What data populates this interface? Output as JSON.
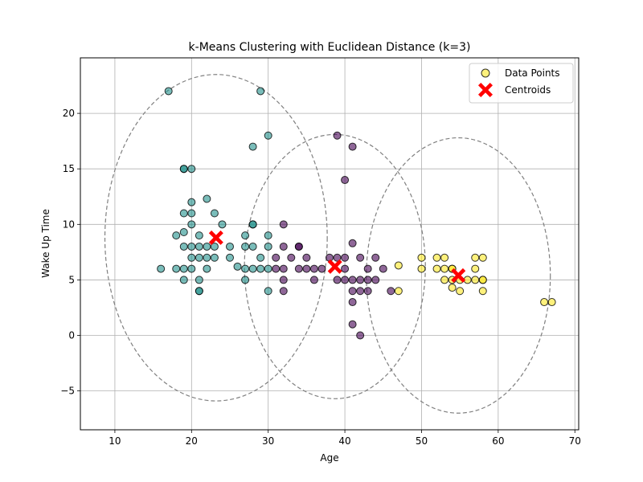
{
  "chart_data": {
    "type": "scatter",
    "title": "k-Means Clustering with Euclidean Distance (k=3)",
    "xlabel": "Age",
    "ylabel": "Wake Up Time",
    "xlim": [
      5.5,
      70.5
    ],
    "ylim": [
      -8.5,
      25
    ],
    "xticks": [
      10,
      20,
      30,
      40,
      50,
      60,
      70
    ],
    "yticks": [
      -5,
      0,
      5,
      10,
      15,
      20
    ],
    "grid": true,
    "legend": {
      "placement": "top-right",
      "entries": [
        {
          "label": "Data Points",
          "marker": "circle",
          "color": "#fde725"
        },
        {
          "label": "Centroids",
          "marker": "x",
          "color": "#ff0000"
        }
      ]
    },
    "colors": {
      "cluster_young": "#21918c",
      "cluster_middle": "#440154",
      "cluster_old": "#fde725",
      "centroid": "#ff0000",
      "ellipse": "#808080",
      "grid": "#b0b0b0"
    },
    "clusters": [
      {
        "color": "#21918c",
        "centroid": [
          23.2,
          8.8
        ],
        "ellipse": {
          "center": [
            23.2,
            8.8
          ],
          "rx": 14.5,
          "ry": 14.7
        },
        "points": [
          [
            17,
            22
          ],
          [
            29,
            22
          ],
          [
            30,
            18
          ],
          [
            28,
            17
          ],
          [
            19,
            15
          ],
          [
            19,
            15
          ],
          [
            20,
            15
          ],
          [
            22,
            12.3
          ],
          [
            20,
            12
          ],
          [
            23,
            11
          ],
          [
            19,
            11
          ],
          [
            20,
            11
          ],
          [
            24,
            10
          ],
          [
            20,
            10
          ],
          [
            28,
            10
          ],
          [
            28,
            10
          ],
          [
            18,
            9
          ],
          [
            21,
            9
          ],
          [
            27,
            9
          ],
          [
            30,
            9
          ],
          [
            19,
            9.3
          ],
          [
            19,
            8
          ],
          [
            20,
            8
          ],
          [
            21,
            8
          ],
          [
            22,
            8
          ],
          [
            23,
            8
          ],
          [
            25,
            8
          ],
          [
            27,
            8
          ],
          [
            28,
            8
          ],
          [
            30,
            8
          ],
          [
            20,
            7
          ],
          [
            21,
            7
          ],
          [
            22,
            7
          ],
          [
            23,
            7
          ],
          [
            25,
            7
          ],
          [
            29,
            7
          ],
          [
            16,
            6
          ],
          [
            18,
            6
          ],
          [
            19,
            6
          ],
          [
            20,
            6
          ],
          [
            22,
            6
          ],
          [
            26,
            6.2
          ],
          [
            27,
            6
          ],
          [
            28,
            6
          ],
          [
            29,
            6
          ],
          [
            30,
            6
          ],
          [
            19,
            5
          ],
          [
            21,
            5
          ],
          [
            27,
            5
          ],
          [
            21,
            4
          ],
          [
            21,
            4
          ],
          [
            30,
            4
          ]
        ]
      },
      {
        "color": "#440154",
        "centroid": [
          38.7,
          6.2
        ],
        "ellipse": {
          "center": [
            38.7,
            6.2
          ],
          "rx": 11.8,
          "ry": 11.9
        },
        "points": [
          [
            39,
            18
          ],
          [
            41,
            17
          ],
          [
            40,
            14
          ],
          [
            32,
            10
          ],
          [
            41,
            8.3
          ],
          [
            32,
            8
          ],
          [
            34,
            8
          ],
          [
            34,
            8
          ],
          [
            31,
            7
          ],
          [
            33,
            7
          ],
          [
            35,
            7
          ],
          [
            38,
            7
          ],
          [
            39,
            7
          ],
          [
            40,
            7
          ],
          [
            42,
            7
          ],
          [
            44,
            7
          ],
          [
            31,
            6
          ],
          [
            32,
            6
          ],
          [
            34,
            6
          ],
          [
            35,
            6
          ],
          [
            36,
            6
          ],
          [
            37,
            6
          ],
          [
            40,
            6
          ],
          [
            43,
            6
          ],
          [
            45,
            6
          ],
          [
            32,
            5
          ],
          [
            36,
            5
          ],
          [
            39,
            5
          ],
          [
            40,
            5
          ],
          [
            41,
            5
          ],
          [
            42,
            5
          ],
          [
            43,
            5
          ],
          [
            44,
            5
          ],
          [
            32,
            4
          ],
          [
            41,
            4
          ],
          [
            42,
            4
          ],
          [
            43,
            4
          ],
          [
            46,
            4
          ],
          [
            41,
            3
          ],
          [
            41,
            1
          ],
          [
            42,
            0
          ]
        ]
      },
      {
        "color": "#fde725",
        "centroid": [
          54.8,
          5.4
        ],
        "ellipse": {
          "center": [
            54.8,
            5.4
          ],
          "rx": 12.0,
          "ry": 12.4
        },
        "points": [
          [
            47,
            6.3
          ],
          [
            50,
            7
          ],
          [
            52,
            7
          ],
          [
            53,
            7
          ],
          [
            57,
            7
          ],
          [
            58,
            7
          ],
          [
            50,
            6
          ],
          [
            52,
            6
          ],
          [
            53,
            6
          ],
          [
            54,
            6
          ],
          [
            54,
            6
          ],
          [
            57,
            6
          ],
          [
            53,
            5
          ],
          [
            54,
            5
          ],
          [
            55,
            5
          ],
          [
            56,
            5
          ],
          [
            57,
            5
          ],
          [
            58,
            5
          ],
          [
            58,
            5
          ],
          [
            54,
            4.3
          ],
          [
            55,
            4
          ],
          [
            58,
            4
          ],
          [
            47,
            4
          ],
          [
            66,
            3
          ],
          [
            67,
            3
          ]
        ]
      }
    ]
  }
}
